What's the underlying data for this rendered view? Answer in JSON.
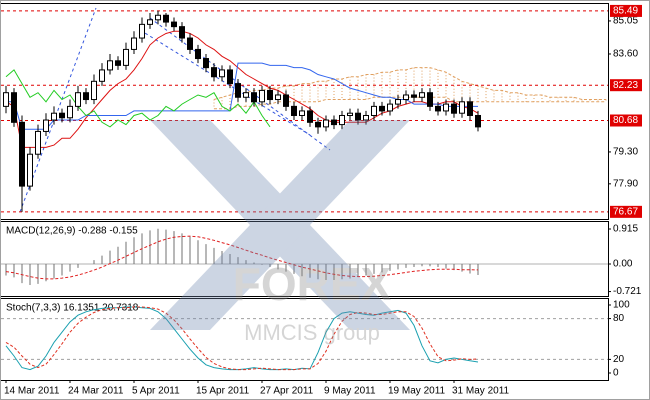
{
  "chart_data": [
    {
      "type": "candlestick",
      "open": [
        81.3,
        81.9,
        80.6,
        77.8,
        79.2,
        80.2,
        80.7,
        81.0,
        80.8,
        81.3,
        81.9,
        81.6,
        82.4,
        82.9,
        83.3,
        83.1,
        83.8,
        84.3,
        84.9,
        85.1,
        85.3,
        85.0,
        84.8,
        84.3,
        83.8,
        83.4,
        83.0,
        82.6,
        82.9,
        82.3,
        81.7,
        81.9,
        81.5,
        82.0,
        81.6,
        81.8,
        81.3,
        80.9,
        81.1,
        80.6,
        80.4,
        80.7,
        80.5,
        80.9,
        81.0,
        80.7,
        80.9,
        81.3,
        81.1,
        81.4,
        81.6,
        81.8,
        81.7,
        81.9,
        81.3,
        81.1,
        81.4,
        81.0,
        81.5,
        80.9
      ],
      "high": [
        82.2,
        82.1,
        80.9,
        79.5,
        80.5,
        81.0,
        81.3,
        81.2,
        81.6,
        82.2,
        82.1,
        82.7,
        83.2,
        83.6,
        83.5,
        84.1,
        84.6,
        85.2,
        85.4,
        85.49,
        85.4,
        85.2,
        85.0,
        84.5,
        84.0,
        83.6,
        83.2,
        83.1,
        83.1,
        82.5,
        82.1,
        82.1,
        82.2,
        82.2,
        82.0,
        82.0,
        81.5,
        81.3,
        81.3,
        80.8,
        80.9,
        80.9,
        81.1,
        81.2,
        81.2,
        81.1,
        81.5,
        81.5,
        81.6,
        81.8,
        82.0,
        82.0,
        82.1,
        82.1,
        81.5,
        81.6,
        81.6,
        81.7,
        81.7,
        81.1
      ],
      "low": [
        81.0,
        80.4,
        76.67,
        77.6,
        79.0,
        80.0,
        80.5,
        80.6,
        80.6,
        81.1,
        81.4,
        81.4,
        82.2,
        82.7,
        82.9,
        82.9,
        83.6,
        84.1,
        84.7,
        84.9,
        84.8,
        84.6,
        84.1,
        83.6,
        83.2,
        82.8,
        82.4,
        82.4,
        82.1,
        81.5,
        81.5,
        81.3,
        81.3,
        81.4,
        81.4,
        81.1,
        80.7,
        80.7,
        80.4,
        80.1,
        80.2,
        80.3,
        80.3,
        80.7,
        80.5,
        80.5,
        80.7,
        80.9,
        80.9,
        81.2,
        81.4,
        81.5,
        81.5,
        81.1,
        80.9,
        80.9,
        80.8,
        80.8,
        80.7,
        80.2
      ],
      "close": [
        81.9,
        80.6,
        77.8,
        79.2,
        80.2,
        80.7,
        81.0,
        80.8,
        81.3,
        81.9,
        81.6,
        82.4,
        82.9,
        83.3,
        83.1,
        83.8,
        84.3,
        84.9,
        85.1,
        85.3,
        85.0,
        84.8,
        84.3,
        83.8,
        83.4,
        83.0,
        82.6,
        82.9,
        82.3,
        81.7,
        81.9,
        81.5,
        82.0,
        81.6,
        81.8,
        81.3,
        80.9,
        81.1,
        80.6,
        80.4,
        80.7,
        80.5,
        80.9,
        81.0,
        80.7,
        80.9,
        81.3,
        81.1,
        81.4,
        81.6,
        81.8,
        81.7,
        81.9,
        81.3,
        81.1,
        81.4,
        81.0,
        81.5,
        80.9,
        80.4
      ],
      "series": [
        {
          "color": "#dd1111",
          "values": [
            81.5,
            81.3,
            79.5,
            79.5,
            79.5,
            79.5,
            79.6,
            79.9,
            79.9,
            80.3,
            80.8,
            81.2,
            81.6,
            82.0,
            82.3,
            82.5,
            82.9,
            83.4,
            84.0,
            84.3,
            84.5,
            84.6,
            84.6,
            84.5,
            84.3,
            84.0,
            83.8,
            83.5,
            83.3,
            83.0,
            82.7,
            82.5,
            82.3,
            82.1,
            82.0,
            81.8,
            81.6,
            81.4,
            81.2,
            80.9,
            80.7,
            80.6,
            80.6,
            80.6,
            80.6,
            80.6,
            80.8,
            81.0,
            81.1,
            81.3,
            81.4,
            81.5,
            81.5,
            81.4,
            81.4,
            81.5,
            81.5,
            81.3,
            81.2,
            81.0
          ]
        },
        {
          "color": "#3366ee",
          "values": [
            81.5,
            81.5,
            80.3,
            80.3,
            80.3,
            80.3,
            80.7,
            80.7,
            80.7,
            80.7,
            80.9,
            80.9,
            80.9,
            80.9,
            80.9,
            80.9,
            81.1,
            81.1,
            81.1,
            81.1,
            81.1,
            81.1,
            81.1,
            81.1,
            81.1,
            81.1,
            81.1,
            81.1,
            81.1,
            83.2,
            83.2,
            83.2,
            83.2,
            83.1,
            83.1,
            83.1,
            83.0,
            83.0,
            82.9,
            82.7,
            82.6,
            82.5,
            82.3,
            82.1,
            82.0,
            81.9,
            81.8,
            81.7,
            81.7,
            81.6,
            81.6,
            81.4,
            81.4,
            81.4,
            81.4,
            81.3,
            81.3,
            81.3,
            81.3,
            81.3
          ]
        },
        {
          "color": "#22cc22",
          "values": [
            82.6,
            82.9,
            82.3,
            81.7,
            81.9,
            81.5,
            82.0,
            81.6,
            81.8,
            81.3,
            80.9,
            81.1,
            80.6,
            80.4,
            80.7,
            80.5,
            80.9,
            81.0,
            80.7,
            80.9,
            81.3,
            81.1,
            81.4,
            81.6,
            81.8,
            81.7,
            81.9,
            81.3,
            81.1,
            81.4,
            81.0,
            81.5,
            80.9,
            80.4,
            null,
            null,
            null,
            null,
            null,
            null,
            null,
            null,
            null,
            null,
            null,
            null,
            null,
            null,
            null,
            null,
            null,
            null,
            null,
            null,
            null,
            null,
            null,
            null,
            null,
            null
          ]
        }
      ],
      "cloud": {
        "color": "#e0a060",
        "span_a": [
          null,
          null,
          null,
          null,
          null,
          null,
          null,
          null,
          null,
          null,
          null,
          null,
          null,
          null,
          null,
          null,
          null,
          null,
          null,
          null,
          null,
          null,
          null,
          null,
          null,
          null,
          81.6,
          81.7,
          81.8,
          81.9,
          81.9,
          82.0,
          82.0,
          82.1,
          82.1,
          82.2,
          82.2,
          82.3,
          82.3,
          82.4,
          82.4,
          82.5,
          82.5,
          82.6,
          82.6,
          82.7,
          82.7,
          82.8,
          82.8,
          82.9,
          82.9,
          83.0,
          83.0,
          83.0,
          82.9,
          82.8,
          82.6,
          82.4,
          82.3,
          82.2,
          82.1,
          82.0,
          82.0,
          81.9,
          81.9,
          81.8,
          81.8,
          81.8,
          81.7,
          81.7,
          81.7,
          81.7,
          81.6,
          81.6,
          81.6,
          81.6
        ],
        "span_b": [
          null,
          null,
          null,
          null,
          null,
          null,
          null,
          null,
          null,
          null,
          null,
          null,
          null,
          null,
          null,
          null,
          null,
          null,
          null,
          null,
          null,
          null,
          null,
          null,
          null,
          null,
          81.2,
          81.2,
          81.2,
          81.3,
          81.3,
          81.3,
          81.4,
          81.4,
          81.5,
          81.5,
          81.5,
          81.5,
          81.5,
          81.5,
          81.6,
          81.6,
          81.6,
          81.6,
          81.6,
          81.6,
          81.7,
          81.7,
          81.7,
          81.7,
          81.7,
          81.7,
          81.7,
          81.7,
          81.7,
          81.7,
          81.5,
          81.5,
          81.5,
          81.5,
          81.5,
          81.5,
          81.5,
          81.5,
          81.5,
          81.5,
          81.5,
          81.5,
          81.5,
          81.5,
          81.5,
          81.5,
          81.5,
          81.5,
          81.5,
          81.5
        ]
      },
      "ylim": [
        76.4,
        85.75
      ],
      "yticks": [
        85.05,
        {
          "value": 83.6,
          "label": "83.60"
        },
        {
          "value": 79.3,
          "label": "79.30"
        },
        {
          "value": 77.9,
          "label": "77.90"
        }
      ],
      "levels": [
        85.49,
        82.23,
        80.68,
        76.67
      ],
      "level_color": "#e00000"
    },
    {
      "type": "macd",
      "title": "MACD(12,26,9) -0.288 -0.155",
      "color": "#707070",
      "values": [
        -0.3,
        -0.35,
        -0.5,
        -0.55,
        -0.52,
        -0.45,
        -0.38,
        -0.3,
        -0.2,
        -0.1,
        0.0,
        0.1,
        0.22,
        0.35,
        0.45,
        0.58,
        0.7,
        0.8,
        0.88,
        0.92,
        0.9,
        0.86,
        0.8,
        0.72,
        0.62,
        0.52,
        0.42,
        0.34,
        0.26,
        0.18,
        0.1,
        0.04,
        -0.02,
        -0.08,
        -0.14,
        -0.2,
        -0.26,
        -0.32,
        -0.36,
        -0.4,
        -0.42,
        -0.42,
        -0.4,
        -0.38,
        -0.34,
        -0.3,
        -0.26,
        -0.22,
        -0.18,
        -0.14,
        -0.1,
        -0.08,
        -0.06,
        -0.06,
        -0.08,
        -0.12,
        -0.16,
        -0.2,
        -0.25,
        -0.288
      ],
      "signal": {
        "color": "#e02020",
        "dashed": true,
        "values": [
          -0.2,
          -0.23,
          -0.28,
          -0.33,
          -0.37,
          -0.39,
          -0.39,
          -0.37,
          -0.34,
          -0.29,
          -0.23,
          -0.16,
          -0.08,
          0.01,
          0.1,
          0.2,
          0.3,
          0.4,
          0.49,
          0.58,
          0.65,
          0.7,
          0.72,
          0.73,
          0.71,
          0.67,
          0.62,
          0.56,
          0.5,
          0.43,
          0.36,
          0.29,
          0.23,
          0.16,
          0.1,
          0.04,
          -0.02,
          -0.08,
          -0.13,
          -0.18,
          -0.23,
          -0.27,
          -0.3,
          -0.32,
          -0.33,
          -0.33,
          -0.32,
          -0.3,
          -0.28,
          -0.25,
          -0.22,
          -0.19,
          -0.17,
          -0.15,
          -0.14,
          -0.14,
          -0.14,
          -0.15,
          -0.15,
          -0.155
        ]
      },
      "ylim": [
        -0.837,
        1.098
      ],
      "yticks": [
        0.915,
        {
          "value": 0,
          "label": "0.00"
        },
        -0.721
      ]
    },
    {
      "type": "stochastic",
      "title": "Stoch(7,3,3) 16.1351 20.7318",
      "categories": [
        "14 Mar 2011",
        null,
        null,
        null,
        null,
        null,
        null,
        null,
        "24 Mar 2011",
        null,
        null,
        null,
        null,
        null,
        null,
        null,
        "5 Apr 2011",
        null,
        null,
        null,
        null,
        null,
        null,
        null,
        "15 Apr 2011",
        null,
        null,
        null,
        null,
        null,
        null,
        null,
        "27 Apr 2011",
        null,
        null,
        null,
        null,
        null,
        null,
        null,
        "9 May 2011",
        null,
        null,
        null,
        null,
        null,
        null,
        null,
        "19 May 2011",
        null,
        null,
        null,
        null,
        null,
        null,
        null,
        "31 May 2011",
        null,
        null,
        null
      ],
      "series": [
        {
          "color": "#1aa0b0",
          "dashed": false,
          "values": [
            40,
            25,
            8,
            5,
            10,
            25,
            45,
            60,
            75,
            85,
            90,
            93,
            95,
            96,
            96,
            97,
            97,
            96,
            95,
            90,
            80,
            65,
            50,
            35,
            22,
            12,
            8,
            6,
            5,
            5,
            6,
            8,
            6,
            5,
            5,
            6,
            5,
            7,
            6,
            30,
            60,
            80,
            88,
            90,
            88,
            86,
            85,
            88,
            90,
            92,
            88,
            70,
            40,
            18,
            15,
            20,
            22,
            20,
            18,
            16.1351
          ]
        },
        {
          "color": "#e03020",
          "dashed": true,
          "values": [
            45,
            38,
            25,
            13,
            8,
            13,
            27,
            43,
            60,
            73,
            82,
            89,
            93,
            95,
            96,
            96,
            97,
            97,
            96,
            94,
            88,
            78,
            65,
            50,
            36,
            23,
            14,
            9,
            6,
            5,
            5,
            6,
            7,
            6,
            5,
            5,
            5,
            6,
            6,
            14,
            32,
            57,
            76,
            86,
            89,
            88,
            86,
            86,
            88,
            90,
            90,
            83,
            66,
            43,
            24,
            18,
            19,
            21,
            20,
            20.7318
          ]
        }
      ],
      "ylim": [
        -10.3,
        108.8
      ],
      "yticks": [
        100,
        80,
        20,
        0
      ],
      "levels": [
        80,
        20
      ]
    }
  ],
  "watermark": {
    "brand": "FOREX",
    "tagline": "MMCIS group"
  }
}
